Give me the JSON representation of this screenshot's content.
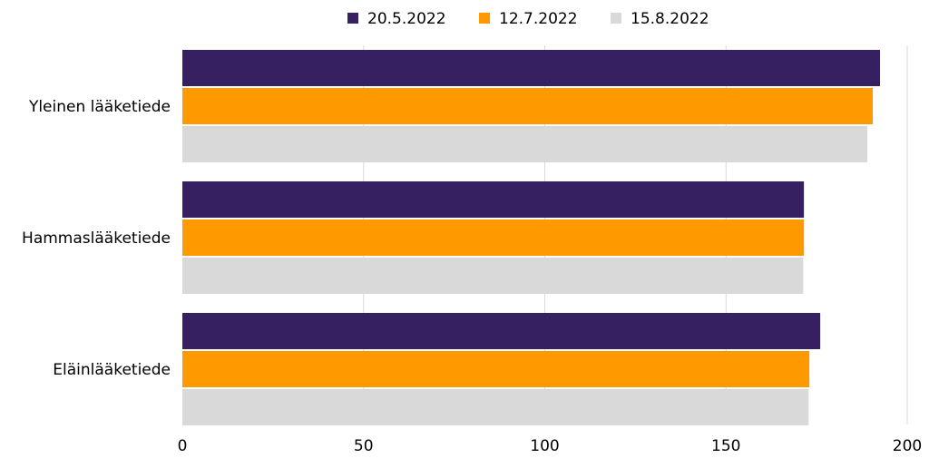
{
  "chart_data": {
    "type": "bar",
    "orientation": "horizontal",
    "title": "",
    "xlabel": "",
    "ylabel": "",
    "categories": [
      "Yleinen lääketiede",
      "Hammaslääketiede",
      "Eläinlääketiede"
    ],
    "series": [
      {
        "name": "20.5.2022",
        "color": "#362062",
        "values": [
          192.5,
          171.5,
          176.0
        ]
      },
      {
        "name": "12.7.2022",
        "color": "#FF9900",
        "values": [
          190.5,
          171.5,
          173.0
        ]
      },
      {
        "name": "15.8.2022",
        "color": "#D9D9D9",
        "values": [
          189.0,
          171.3,
          172.8
        ]
      }
    ],
    "xlim": [
      0,
      200
    ],
    "xticks": [
      0,
      50,
      100,
      150,
      200
    ],
    "xtick_labels": [
      "0",
      "50",
      "100",
      "150",
      "200"
    ],
    "grid": "vertical",
    "legend": "top-center"
  }
}
